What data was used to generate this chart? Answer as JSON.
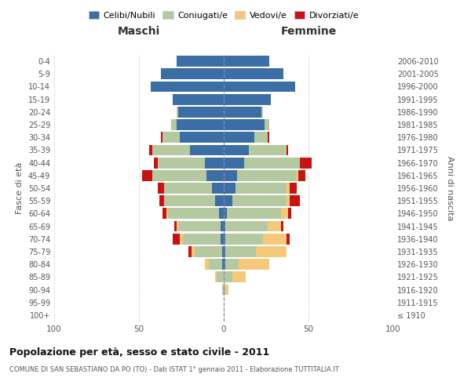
{
  "age_groups": [
    "100+",
    "95-99",
    "90-94",
    "85-89",
    "80-84",
    "75-79",
    "70-74",
    "65-69",
    "60-64",
    "55-59",
    "50-54",
    "45-49",
    "40-44",
    "35-39",
    "30-34",
    "25-29",
    "20-24",
    "15-19",
    "10-14",
    "5-9",
    "0-4"
  ],
  "birth_years": [
    "≤ 1910",
    "1911-1915",
    "1916-1920",
    "1921-1925",
    "1926-1930",
    "1931-1935",
    "1936-1940",
    "1941-1945",
    "1946-1950",
    "1951-1955",
    "1956-1960",
    "1961-1965",
    "1966-1970",
    "1971-1975",
    "1976-1980",
    "1981-1985",
    "1986-1990",
    "1991-1995",
    "1996-2000",
    "2001-2005",
    "2006-2010"
  ],
  "colors": {
    "celibi": "#3a6ea5",
    "coniugati": "#b5c9a0",
    "vedovi": "#f5c97a",
    "divorziati": "#cc1111"
  },
  "males": {
    "celibi": [
      0,
      0,
      0,
      0,
      1,
      1,
      2,
      2,
      3,
      5,
      7,
      10,
      11,
      20,
      26,
      28,
      27,
      30,
      43,
      37,
      28
    ],
    "coniugati": [
      0,
      0,
      1,
      4,
      8,
      16,
      22,
      25,
      30,
      30,
      28,
      32,
      28,
      22,
      10,
      3,
      1,
      0,
      0,
      0,
      0
    ],
    "vedovi": [
      0,
      0,
      0,
      1,
      2,
      2,
      2,
      1,
      1,
      0,
      0,
      0,
      0,
      0,
      0,
      0,
      0,
      0,
      0,
      0,
      0
    ],
    "divorziati": [
      0,
      0,
      0,
      0,
      0,
      2,
      4,
      1,
      2,
      3,
      4,
      6,
      2,
      2,
      1,
      0,
      0,
      0,
      0,
      0,
      0
    ]
  },
  "females": {
    "celibi": [
      0,
      0,
      0,
      0,
      1,
      1,
      1,
      1,
      2,
      5,
      7,
      8,
      12,
      15,
      18,
      24,
      22,
      28,
      42,
      35,
      27
    ],
    "coniugati": [
      0,
      0,
      1,
      5,
      8,
      18,
      22,
      25,
      32,
      32,
      30,
      35,
      33,
      22,
      8,
      3,
      1,
      0,
      0,
      0,
      0
    ],
    "vedovi": [
      0,
      0,
      2,
      8,
      18,
      18,
      14,
      8,
      4,
      2,
      2,
      1,
      0,
      0,
      0,
      0,
      0,
      0,
      0,
      0,
      0
    ],
    "divorziati": [
      0,
      0,
      0,
      0,
      0,
      0,
      2,
      1,
      2,
      6,
      4,
      4,
      7,
      1,
      1,
      0,
      0,
      0,
      0,
      0,
      0
    ]
  },
  "xlim": [
    -100,
    100
  ],
  "xticks": [
    -100,
    -50,
    0,
    50,
    100
  ],
  "xticklabels": [
    "100",
    "50",
    "0",
    "50",
    "100"
  ],
  "title": "Popolazione per età, sesso e stato civile - 2011",
  "subtitle": "COMUNE DI SAN SEBASTIANO DA PO (TO) - Dati ISTAT 1° gennaio 2011 - Elaborazione TUTTITALIA.IT",
  "ylabel_left": "Fasce di età",
  "ylabel_right": "Anni di nascita",
  "label_maschi": "Maschi",
  "label_femmine": "Femmine",
  "legend_labels": [
    "Celibi/Nubili",
    "Coniugati/e",
    "Vedovi/e",
    "Divorziati/e"
  ],
  "bg_color": "#ffffff"
}
